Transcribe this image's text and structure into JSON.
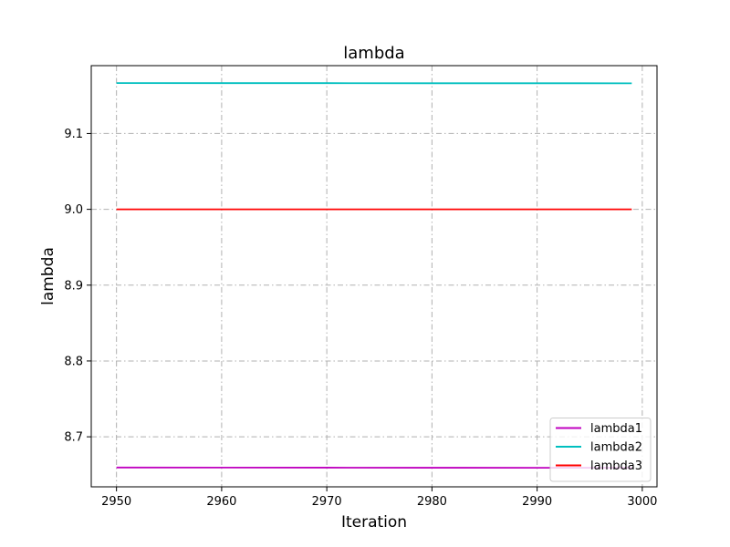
{
  "chart_data": {
    "type": "line",
    "title": "lambda",
    "xlabel": "Iteration",
    "ylabel": "lambda",
    "xlim": [
      2947.6,
      3001.4
    ],
    "ylim": [
      8.634,
      9.1895
    ],
    "xticks": [
      2950,
      2960,
      2970,
      2980,
      2990,
      3000
    ],
    "yticks": [
      8.7,
      8.8,
      8.9,
      9.0,
      9.1
    ],
    "ytick_labels": [
      "8.7",
      "8.8",
      "8.9",
      "9.0",
      "9.1"
    ],
    "grid": true,
    "legend_position": "bottom-right",
    "x": [
      2950,
      2960,
      2970,
      2980,
      2990,
      2999
    ],
    "series": [
      {
        "name": "lambda1",
        "color": "#bf00bf",
        "values": [
          8.6595,
          8.6594,
          8.6593,
          8.6592,
          8.6591,
          8.659
        ]
      },
      {
        "name": "lambda2",
        "color": "#00bfbf",
        "values": [
          9.1665,
          9.1664,
          9.1664,
          9.1663,
          9.1663,
          9.1662
        ]
      },
      {
        "name": "lambda3",
        "color": "#ff0000",
        "values": [
          9.0,
          9.0,
          9.0,
          9.0,
          9.0,
          9.0
        ]
      }
    ]
  }
}
